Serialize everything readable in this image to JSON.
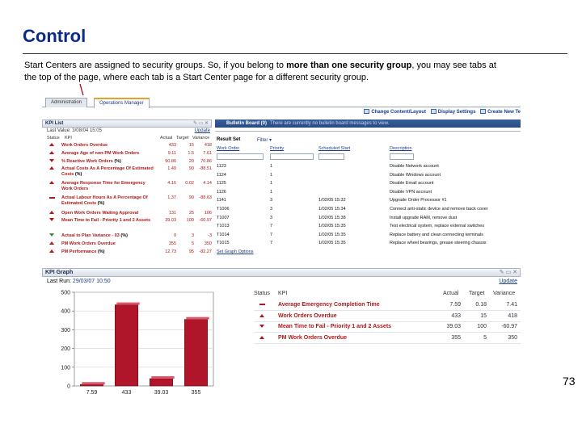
{
  "slide": {
    "title": "Control",
    "intro_part1": "Start Centers are assigned to security groups. So, if you belong to ",
    "intro_bold": "more than one security group",
    "intro_part2": ", you may see tabs at the top of the page, where each tab is a Start Center page for a different security group.",
    "page_number": "73"
  },
  "tabs": [
    {
      "label": "Administration",
      "active": false
    },
    {
      "label": "Operations Manager",
      "active": true
    }
  ],
  "toolbar": {
    "change_content": "Change Content/Layout",
    "display_settings": "Display Settings",
    "create_new": "Create New Te"
  },
  "kpi_list": {
    "title": "KPI List",
    "last_value_label": "Last Value:",
    "last_value": "3/08/04 15:05",
    "update": "Update",
    "col_status": "Status",
    "col_kpi": "KPI",
    "col_actual": "Actual",
    "col_target": "Target",
    "col_variance": "Variance",
    "rows": [
      {
        "status": "up",
        "name": "Work Orders Overdue",
        "pct": "",
        "actual": "433",
        "target": "15",
        "variance": "418"
      },
      {
        "status": "up",
        "name": "Average Age of non-PM Work Orders",
        "pct": "",
        "actual": "9.11",
        "target": "1.5",
        "variance": "7.61"
      },
      {
        "status": "down",
        "name": "% Reactive Work Orders",
        "pct": "(%)",
        "actual": "90.86",
        "target": "20",
        "variance": "70.86"
      },
      {
        "status": "up",
        "name": "Actual Costs As A Percentage Of Estimated Costs",
        "pct": "(%)",
        "actual": "1.49",
        "target": "90",
        "variance": "-88.51"
      },
      {
        "status": "up",
        "name": "Average Response Time for Emergency Work Orders",
        "pct": "",
        "actual": "4.16",
        "target": "0.02",
        "variance": "4.14"
      },
      {
        "status": "flat",
        "name": "Actual Labour Hours As A Percentage Of Estimated Costs",
        "pct": "(%)",
        "actual": "1.37",
        "target": "90",
        "variance": "-88.63"
      },
      {
        "status": "up",
        "name": "Open Work Orders Waiting Approval",
        "pct": "",
        "actual": "131",
        "target": "25",
        "variance": "106"
      },
      {
        "status": "down",
        "name": "Mean Time to Fail - Priority 1 and 2 Assets",
        "pct": "",
        "actual": "39.03",
        "target": "100",
        "variance": "-60.97"
      },
      {
        "status": "down-green",
        "name": "Actual to Plan Variance - 03",
        "pct": "(%)",
        "actual": "0",
        "target": "3",
        "variance": "-3"
      },
      {
        "status": "up",
        "name": "PM Work Orders Overdue",
        "pct": "",
        "actual": "355",
        "target": "5",
        "variance": "350"
      },
      {
        "status": "up",
        "name": "PM Performance",
        "pct": "(%)",
        "actual": "12.73",
        "target": "95",
        "variance": "-82.27"
      }
    ]
  },
  "bulletin": {
    "title": "Bulletin Board (0)",
    "message": "There are currently no bulletin board messages to view."
  },
  "result_set": {
    "title": "Result Set",
    "filter": "Filter",
    "columns": [
      "Work Order",
      "Priority",
      "Scheduled Start",
      "Description"
    ],
    "rows": [
      {
        "wo": "1123",
        "priority": "1",
        "start": "",
        "desc": "Disable Network account"
      },
      {
        "wo": "1124",
        "priority": "1",
        "start": "",
        "desc": "Disable Windows account"
      },
      {
        "wo": "1125",
        "priority": "1",
        "start": "",
        "desc": "Disable Email account"
      },
      {
        "wo": "1126",
        "priority": "1",
        "start": "",
        "desc": "Disable VPN account"
      },
      {
        "wo": "1141",
        "priority": "3",
        "start": "1/02/05 15:32",
        "desc": "Upgrade Order Processor #1"
      },
      {
        "wo": "T1006",
        "priority": "3",
        "start": "1/02/05 15:34",
        "desc": "Connect anti-static device and remove back cover"
      },
      {
        "wo": "T1007",
        "priority": "3",
        "start": "1/02/05 15:38",
        "desc": "Install upgrade RAM, remove dust"
      },
      {
        "wo": "T1013",
        "priority": "7",
        "start": "1/02/05 15:35",
        "desc": "Test electrical system, replace external switches"
      },
      {
        "wo": "T1014",
        "priority": "7",
        "start": "1/02/05 15:35",
        "desc": "Replace battery and clean connecting terminals"
      },
      {
        "wo": "T1015",
        "priority": "7",
        "start": "1/02/05 15:35",
        "desc": "Replace wheel bearings, grease steering chassis"
      }
    ],
    "graph_options": "Set Graph Options"
  },
  "kpi_graph": {
    "title": "KPI Graph",
    "last_run_label": "Last Run:",
    "last_run": "29/03/07 10:50",
    "update": "Update",
    "col_status": "Status",
    "col_kpi": "KPI",
    "col_actual": "Actual",
    "col_target": "Target",
    "col_variance": "Variance",
    "rows": [
      {
        "status": "flat",
        "name": "Average Emergency Completion Time",
        "actual": "7.59",
        "target": "0.18",
        "variance": "7.41"
      },
      {
        "status": "up",
        "name": "Work Orders Overdue",
        "actual": "433",
        "target": "15",
        "variance": "418"
      },
      {
        "status": "down",
        "name": "Mean Time to Fail - Priority 1 and 2 Assets",
        "actual": "39.03",
        "target": "100",
        "variance": "-60.97"
      },
      {
        "status": "up",
        "name": "PM Work Orders Overdue",
        "actual": "355",
        "target": "5",
        "variance": "350"
      }
    ]
  },
  "chart_data": {
    "type": "bar",
    "categories": [
      "7.59",
      "433",
      "39.03",
      "355"
    ],
    "values": [
      7.59,
      433,
      39.03,
      355
    ],
    "yticks": [
      "0",
      "100",
      "200",
      "300",
      "400",
      "500"
    ],
    "ylim": [
      0,
      500
    ],
    "bar_color": "#b0152a"
  }
}
